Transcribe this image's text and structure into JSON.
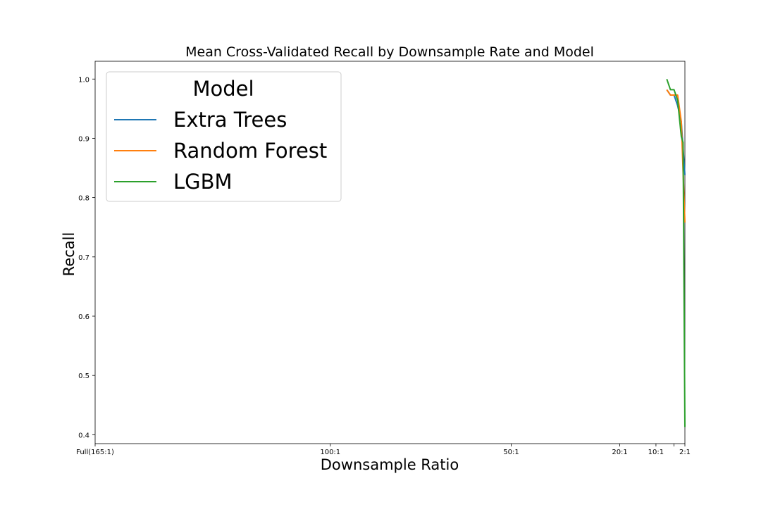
{
  "chart_data": {
    "type": "line",
    "title": "Mean Cross-Validated Recall by Downsample Rate and Model",
    "xlabel": "Downsample Ratio",
    "ylabel": "Recall",
    "x_tick_labels": [
      "Full(165:1)",
      "100:1",
      "50:1",
      "20:1",
      "10:1",
      "",
      "2:1"
    ],
    "x_tick_values": [
      165,
      100,
      50,
      20,
      10,
      5,
      2
    ],
    "xlim": [
      165,
      2
    ],
    "y_ticks": [
      "0.4",
      "0.5",
      "0.6",
      "0.7",
      "0.8",
      "0.9",
      "1.0"
    ],
    "ylim": [
      0.385,
      1.03
    ],
    "grid": false,
    "legend": {
      "title": "Model",
      "position": "top-left"
    },
    "series": [
      {
        "name": "Extra Trees",
        "color": "#1f77b4",
        "x": [
          7,
          6,
          5,
          4,
          3,
          2
        ],
        "y": [
          0.982,
          0.973,
          0.973,
          0.955,
          0.928,
          0.838
        ]
      },
      {
        "name": "Random Forest",
        "color": "#ff7f0e",
        "x": [
          7,
          6,
          5,
          4,
          3,
          2
        ],
        "y": [
          0.982,
          0.973,
          0.973,
          0.973,
          0.928,
          0.758
        ]
      },
      {
        "name": "LGBM",
        "color": "#2ca02c",
        "x": [
          7,
          6,
          5,
          4,
          3,
          2.5,
          2
        ],
        "y": [
          1.0,
          0.982,
          0.982,
          0.964,
          0.903,
          0.893,
          0.413
        ]
      }
    ]
  }
}
